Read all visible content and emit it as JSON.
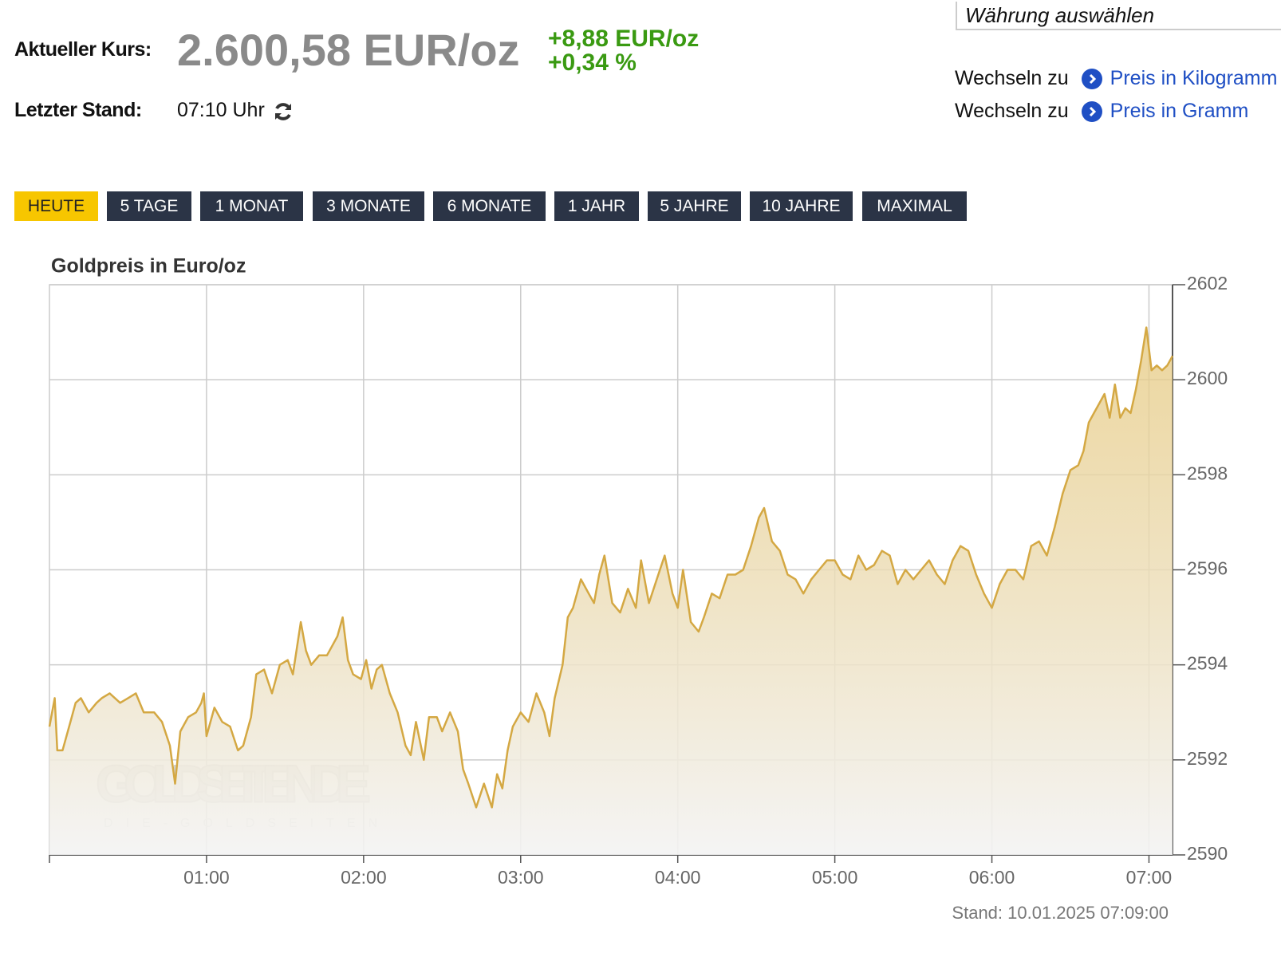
{
  "header": {
    "price_label": "Aktueller Kurs:",
    "price": "2.600,58 EUR/oz",
    "change_abs": "+8,88 EUR/oz",
    "change_pct": "+0,34 %",
    "time_label": "Letzter Stand:",
    "time": "07:10 Uhr"
  },
  "currency_select": "Währung auswählen",
  "links": [
    {
      "prefix": "Wechseln zu",
      "label": "Preis in Kilogramm"
    },
    {
      "prefix": "Wechseln zu",
      "label": "Preis in Gramm"
    }
  ],
  "tabs": [
    "HEUTE",
    "5 TAGE",
    "1 MONAT",
    "3 MONATE",
    "6 MONATE",
    "1 JAHR",
    "5 JAHRE",
    "10 JAHRE",
    "MAXIMAL"
  ],
  "active_tab": 0,
  "chart_data": {
    "type": "line",
    "title": "Goldpreis in Euro/oz",
    "x": [
      0,
      2,
      3,
      5,
      8,
      10,
      12,
      15,
      18,
      20,
      23,
      27,
      30,
      33,
      36,
      40,
      43,
      46,
      48,
      50,
      53,
      56,
      58,
      59,
      60,
      63,
      66,
      69,
      72,
      74,
      77,
      79,
      82,
      85,
      88,
      91,
      93,
      96,
      98,
      100,
      103,
      106,
      108,
      110,
      112,
      114,
      116,
      119,
      121,
      123,
      125,
      127,
      130,
      133,
      136,
      138,
      140,
      143,
      145,
      148,
      150,
      153,
      156,
      158,
      160,
      163,
      166,
      169,
      171,
      173,
      175,
      177,
      180,
      183,
      186,
      189,
      191,
      193,
      196,
      198,
      200,
      203,
      206,
      208,
      210,
      212,
      215,
      218,
      221,
      224,
      226,
      229,
      232,
      235,
      238,
      240,
      242,
      245,
      248,
      250,
      253,
      256,
      259,
      262,
      265,
      268,
      271,
      273,
      276,
      279,
      282,
      285,
      288,
      291,
      294,
      297,
      300,
      303,
      306,
      309,
      312,
      315,
      318,
      321,
      324,
      327,
      330,
      333,
      336,
      339,
      342,
      345,
      348,
      351,
      354,
      357,
      360,
      363,
      366,
      369,
      372,
      375,
      378,
      381,
      384,
      387,
      390,
      393,
      395,
      397,
      399,
      401,
      403,
      405,
      407,
      409,
      411,
      413,
      415,
      417,
      419,
      421,
      423,
      425,
      427,
      429
    ],
    "values": [
      2592.7,
      2593.3,
      2592.2,
      2592.2,
      2592.8,
      2593.2,
      2593.3,
      2593.0,
      2593.2,
      2593.3,
      2593.4,
      2593.2,
      2593.3,
      2593.4,
      2593.0,
      2593.0,
      2592.8,
      2592.3,
      2591.5,
      2592.6,
      2592.9,
      2593.0,
      2593.2,
      2593.4,
      2592.5,
      2593.1,
      2592.8,
      2592.7,
      2592.2,
      2592.3,
      2592.9,
      2593.8,
      2593.9,
      2593.4,
      2594.0,
      2594.1,
      2593.8,
      2594.9,
      2594.3,
      2594.0,
      2594.2,
      2594.2,
      2594.4,
      2594.6,
      2595.0,
      2594.1,
      2593.8,
      2593.7,
      2594.1,
      2593.5,
      2593.9,
      2594.0,
      2593.4,
      2593.0,
      2592.3,
      2592.1,
      2592.8,
      2592.0,
      2592.9,
      2592.9,
      2592.6,
      2593.0,
      2592.6,
      2591.8,
      2591.5,
      2591.0,
      2591.5,
      2591.0,
      2591.7,
      2591.4,
      2592.2,
      2592.7,
      2593.0,
      2592.8,
      2593.4,
      2593.0,
      2592.5,
      2593.3,
      2594.0,
      2595.0,
      2595.2,
      2595.8,
      2595.5,
      2595.3,
      2595.9,
      2596.3,
      2595.3,
      2595.1,
      2595.6,
      2595.2,
      2596.2,
      2595.3,
      2595.8,
      2596.3,
      2595.5,
      2595.2,
      2596.0,
      2594.9,
      2594.7,
      2595.0,
      2595.5,
      2595.4,
      2595.9,
      2595.9,
      2596.0,
      2596.5,
      2597.1,
      2597.3,
      2596.6,
      2596.4,
      2595.9,
      2595.8,
      2595.5,
      2595.8,
      2596.0,
      2596.2,
      2596.2,
      2595.9,
      2595.8,
      2596.3,
      2596.0,
      2596.1,
      2596.4,
      2596.3,
      2595.7,
      2596.0,
      2595.8,
      2596.0,
      2596.2,
      2595.9,
      2595.7,
      2596.2,
      2596.5,
      2596.4,
      2595.9,
      2595.5,
      2595.2,
      2595.7,
      2596.0,
      2596.0,
      2595.8,
      2596.5,
      2596.6,
      2596.3,
      2596.9,
      2597.6,
      2598.1,
      2598.2,
      2598.5,
      2599.1,
      2599.3,
      2599.5,
      2599.7,
      2599.2,
      2599.9,
      2599.2,
      2599.4,
      2599.3,
      2599.8,
      2600.4,
      2601.1,
      2600.2,
      2600.3,
      2600.2,
      2600.3,
      2600.5
    ],
    "color": "#d4a843",
    "xlim": [
      0,
      429
    ],
    "xticks": [
      {
        "value": 60,
        "label": "01:00"
      },
      {
        "value": 120,
        "label": "02:00"
      },
      {
        "value": 180,
        "label": "03:00"
      },
      {
        "value": 240,
        "label": "04:00"
      },
      {
        "value": 300,
        "label": "05:00"
      },
      {
        "value": 360,
        "label": "06:00"
      },
      {
        "value": 420,
        "label": "07:00"
      }
    ],
    "ylim": [
      2590,
      2602
    ],
    "yticks": [
      2590,
      2592,
      2594,
      2596,
      2598,
      2600,
      2602
    ],
    "grid": true,
    "watermark": "GOLDSEITEN.DE",
    "watermark_sub": "DIE-GOLDSEITEN",
    "footer": "Stand: 10.01.2025 07:09:00"
  }
}
